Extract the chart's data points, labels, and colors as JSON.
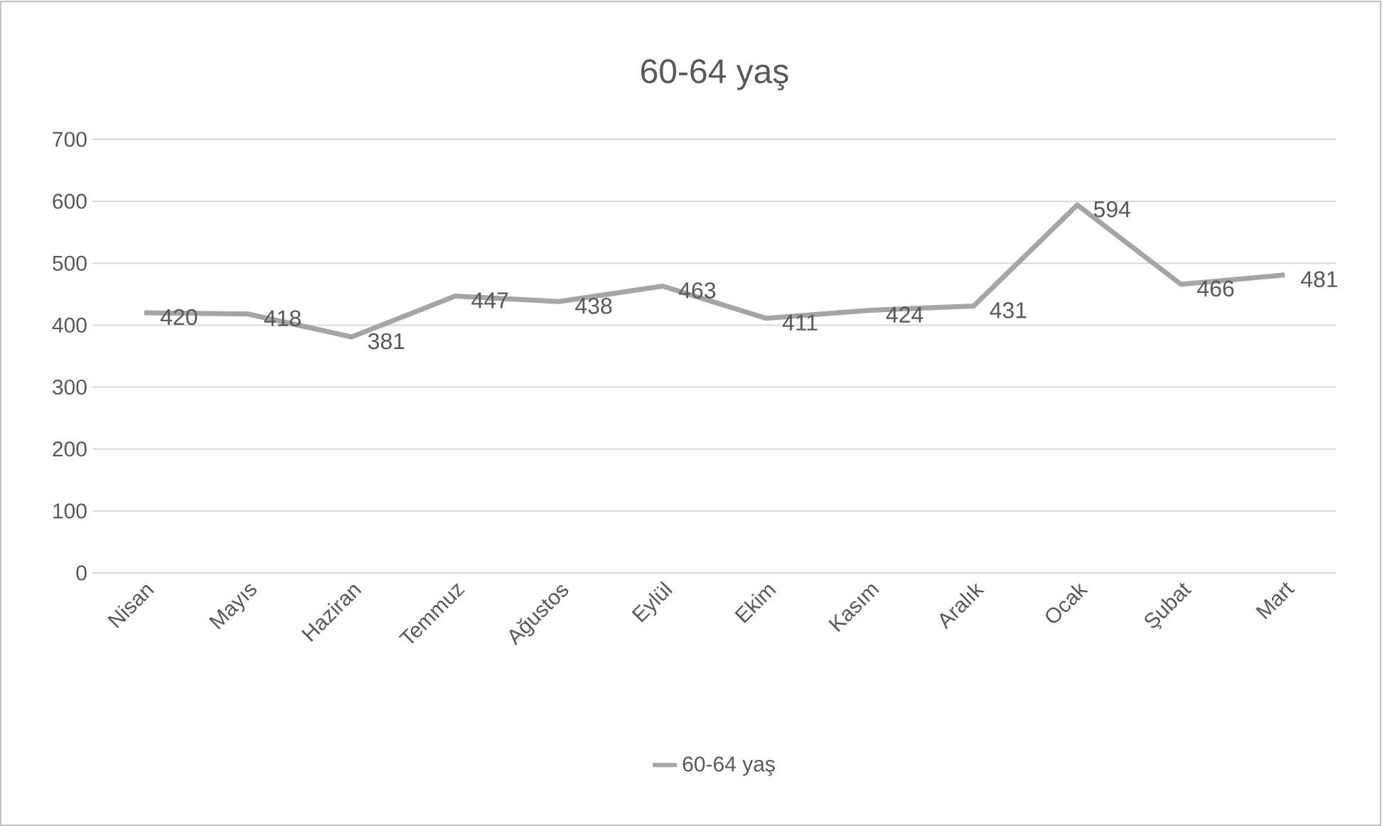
{
  "chart_data": {
    "type": "line",
    "title": "60-64 yaş",
    "categories": [
      "Nisan",
      "Mayıs",
      "Haziran",
      "Temmuz",
      "Ağustos",
      "Eylül",
      "Ekim",
      "Kasım",
      "Aralık",
      "Ocak",
      "Şubat",
      "Mart"
    ],
    "series": [
      {
        "name": "60-64 yaş",
        "color": "#a5a5a5",
        "values": [
          420,
          418,
          381,
          447,
          438,
          463,
          411,
          424,
          431,
          594,
          466,
          481
        ]
      }
    ],
    "ylim": [
      0,
      700
    ],
    "yticks": [
      0,
      100,
      200,
      300,
      400,
      500,
      600,
      700
    ],
    "grid": "y",
    "legend": "bottom",
    "data_labels": true,
    "marker": "none",
    "line_style": "solid"
  }
}
